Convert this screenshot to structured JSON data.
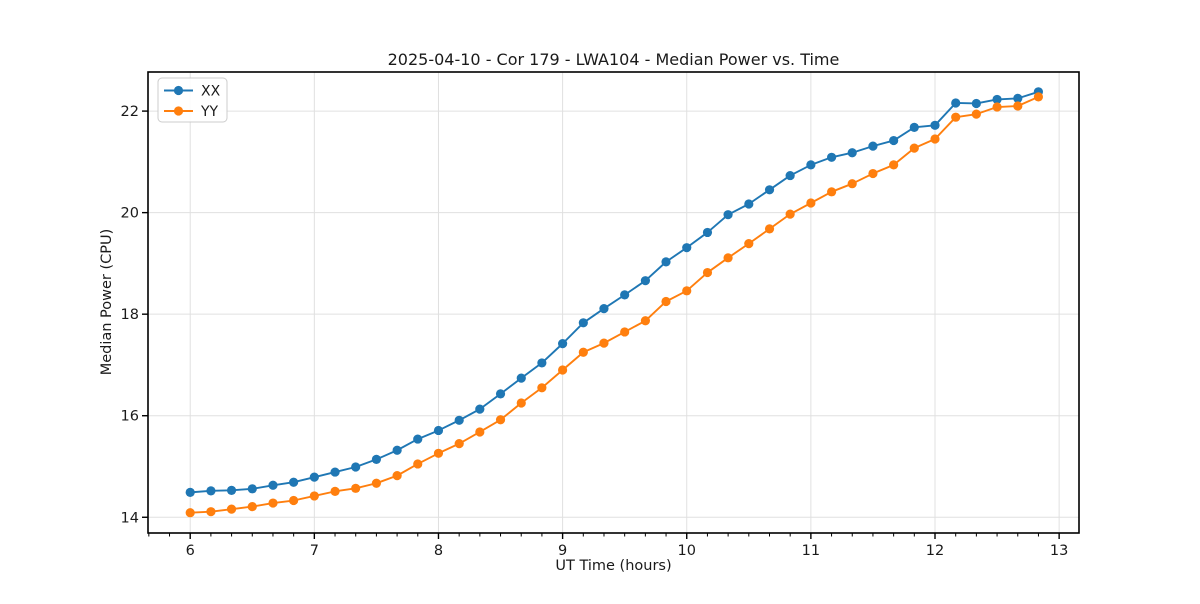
{
  "chart_data": {
    "type": "line",
    "title": "2025-04-10 - Cor 179 - LWA104 - Median Power vs. Time",
    "xlabel": "UT Time (hours)",
    "ylabel": "Median Power (CPU)",
    "xlim": [
      5.66,
      13.16
    ],
    "ylim": [
      13.69,
      22.77
    ],
    "x_ticks": [
      6,
      7,
      8,
      9,
      10,
      11,
      12,
      13
    ],
    "y_ticks": [
      14,
      16,
      18,
      20,
      22
    ],
    "minor_tick_interval_hours": 0.1667,
    "grid": true,
    "legend": {
      "position": "upper-left",
      "entries": [
        "XX",
        "YY"
      ]
    },
    "x": [
      6.0,
      6.167,
      6.333,
      6.5,
      6.667,
      6.833,
      7.0,
      7.167,
      7.333,
      7.5,
      7.667,
      7.833,
      8.0,
      8.167,
      8.333,
      8.5,
      8.667,
      8.833,
      9.0,
      9.167,
      9.333,
      9.5,
      9.667,
      9.833,
      10.0,
      10.167,
      10.333,
      10.5,
      10.667,
      10.833,
      11.0,
      11.167,
      11.333,
      11.5,
      11.667,
      11.833,
      12.0,
      12.167,
      12.333,
      12.5,
      12.667,
      12.833
    ],
    "series": [
      {
        "name": "XX",
        "color": "#1f77b4",
        "values": [
          14.49,
          14.52,
          14.53,
          14.56,
          14.63,
          14.69,
          14.79,
          14.89,
          14.99,
          15.14,
          15.32,
          15.54,
          15.71,
          15.91,
          16.13,
          16.43,
          16.74,
          17.04,
          17.42,
          17.83,
          18.11,
          18.38,
          18.66,
          19.03,
          19.31,
          19.61,
          19.96,
          20.17,
          20.45,
          20.73,
          20.94,
          21.09,
          21.18,
          21.31,
          21.42,
          21.68,
          21.72,
          22.16,
          22.15,
          22.23,
          22.25,
          22.38
        ]
      },
      {
        "name": "YY",
        "color": "#ff7f0e",
        "values": [
          14.09,
          14.11,
          14.16,
          14.21,
          14.28,
          14.33,
          14.42,
          14.51,
          14.57,
          14.67,
          14.82,
          15.05,
          15.26,
          15.45,
          15.68,
          15.92,
          16.25,
          16.55,
          16.9,
          17.25,
          17.43,
          17.65,
          17.87,
          18.25,
          18.46,
          18.82,
          19.11,
          19.39,
          19.68,
          19.97,
          20.19,
          20.41,
          20.57,
          20.77,
          20.94,
          21.27,
          21.45,
          21.88,
          21.94,
          22.08,
          22.1,
          22.28
        ]
      }
    ],
    "style": {
      "grid_color": "#e0e0e0",
      "spine_color": "#000000",
      "text_color": "#1a1a1a",
      "legend_border_color": "#cccccc"
    }
  }
}
